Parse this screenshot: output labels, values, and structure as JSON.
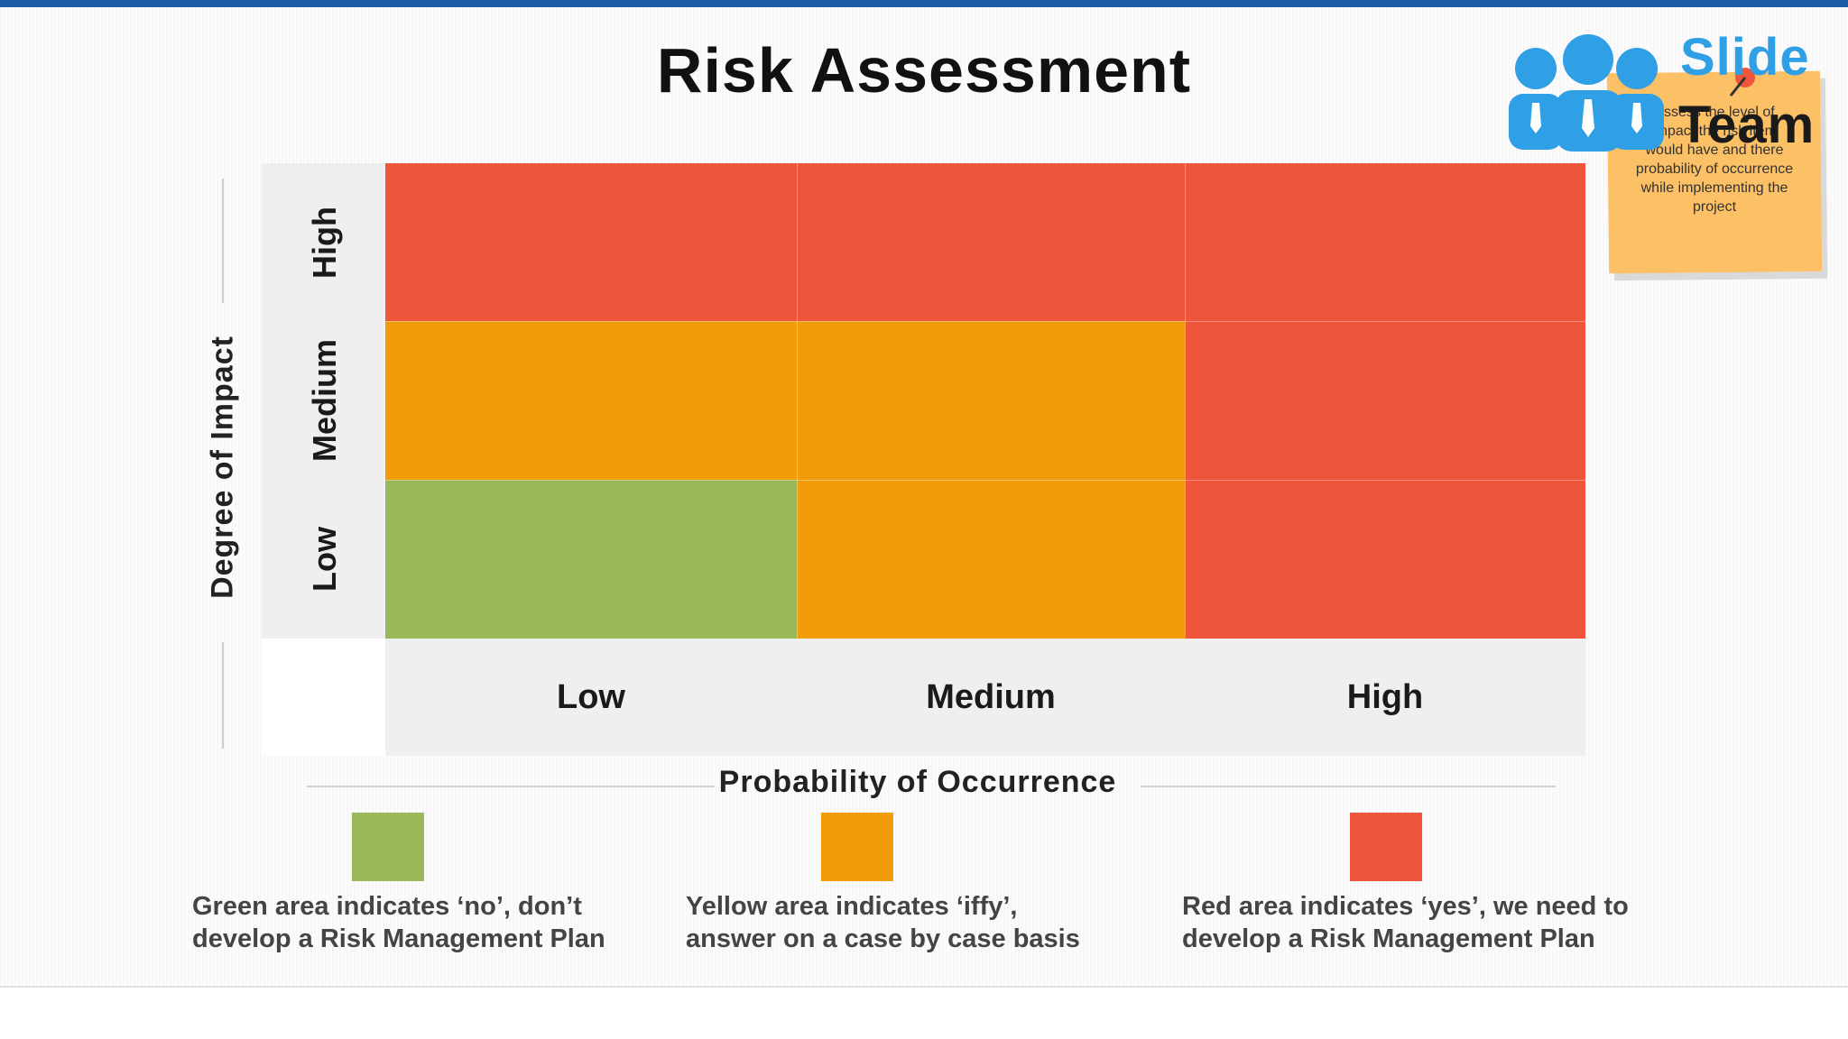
{
  "title": "Risk Assessment",
  "y_axis_title": "Degree of Impact",
  "x_axis_title": "Probability of Occurrence",
  "y_levels": [
    "High",
    "Medium",
    "Low"
  ],
  "x_levels": [
    "Low",
    "Medium",
    "High"
  ],
  "matrix": [
    [
      "red",
      "red",
      "red"
    ],
    [
      "orange",
      "orange",
      "red"
    ],
    [
      "green",
      "orange",
      "red"
    ]
  ],
  "colors": {
    "red": "#ef553b",
    "orange": "#f39c0a",
    "green": "#98b85a",
    "note": "#fcc066",
    "brand_blue": "#2f9fe6",
    "top_bar": "#1c5aa6"
  },
  "legend": [
    {
      "color": "green",
      "line1": "Green area indicates ‘no’, don’t",
      "line2": "develop a Risk Management Plan"
    },
    {
      "color": "orange",
      "line1": "Yellow area indicates ‘iffy’,",
      "line2": "answer on a case by case basis"
    },
    {
      "color": "red",
      "line1": "Red area indicates ‘yes’, we need to",
      "line2": "develop a Risk Management Plan"
    }
  ],
  "note": {
    "lines": [
      "Assess the level of",
      "impact the risk item",
      "would have and there",
      "probability of occurrence",
      "while implementing the",
      "project"
    ]
  },
  "logo": {
    "word1": "Slide",
    "word2": "Team"
  }
}
